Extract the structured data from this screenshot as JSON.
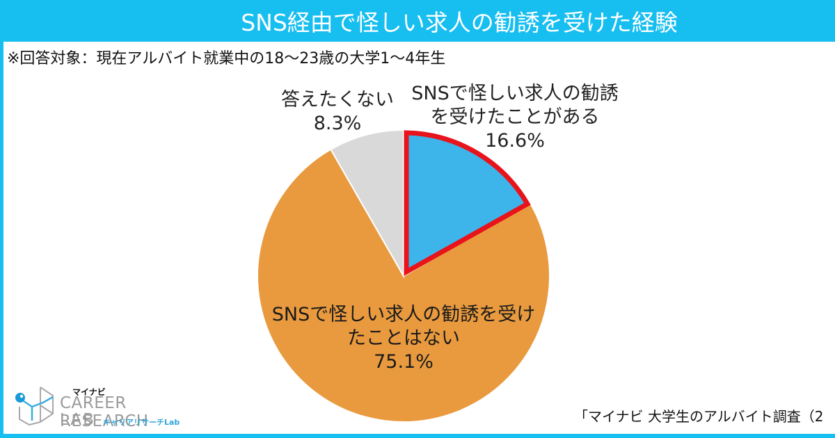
{
  "header": {
    "title": "SNS経由で怪しい求人の勧誘を受けた経験"
  },
  "note": "※回答対象：現在アルバイト就業中の18～23歳の大学1～4年生",
  "chart_data": {
    "type": "pie",
    "title": "SNS経由で怪しい求人の勧誘を受けた経験",
    "subtitle": "※回答対象：現在アルバイト就業中の18～23歳の大学1～4年生",
    "start_angle": "12 o'clock, clockwise",
    "slices": [
      {
        "label_line1": "SNSで怪しい求人の勧誘",
        "label_line2": "を受けたことがある",
        "label": "SNSで怪しい求人の勧誘を受けたことがある",
        "value": 16.6,
        "value_label": "16.6%",
        "color": "#3DB4EA",
        "highlighted": true,
        "highlight_color": "#E8131B"
      },
      {
        "label_line1": "SNSで怪しい求人の勧誘を受け",
        "label_line2": "たことはない",
        "label": "SNSで怪しい求人の勧誘を受けたことはない",
        "value": 75.1,
        "value_label": "75.1%",
        "color": "#E99A3E",
        "highlighted": false
      },
      {
        "label_line1": "答えたくない",
        "label": "答えたくない",
        "value": 8.3,
        "value_label": "8.3%",
        "color": "#D9D9D9",
        "highlighted": false
      }
    ]
  },
  "logo": {
    "brand": "マイナビ",
    "line1": "CAREER RESEARCH",
    "line2": "LAB",
    "jp": "キャリアリサーチLab"
  },
  "source": "「マイナビ 大学生のアルバイト調査（2"
}
